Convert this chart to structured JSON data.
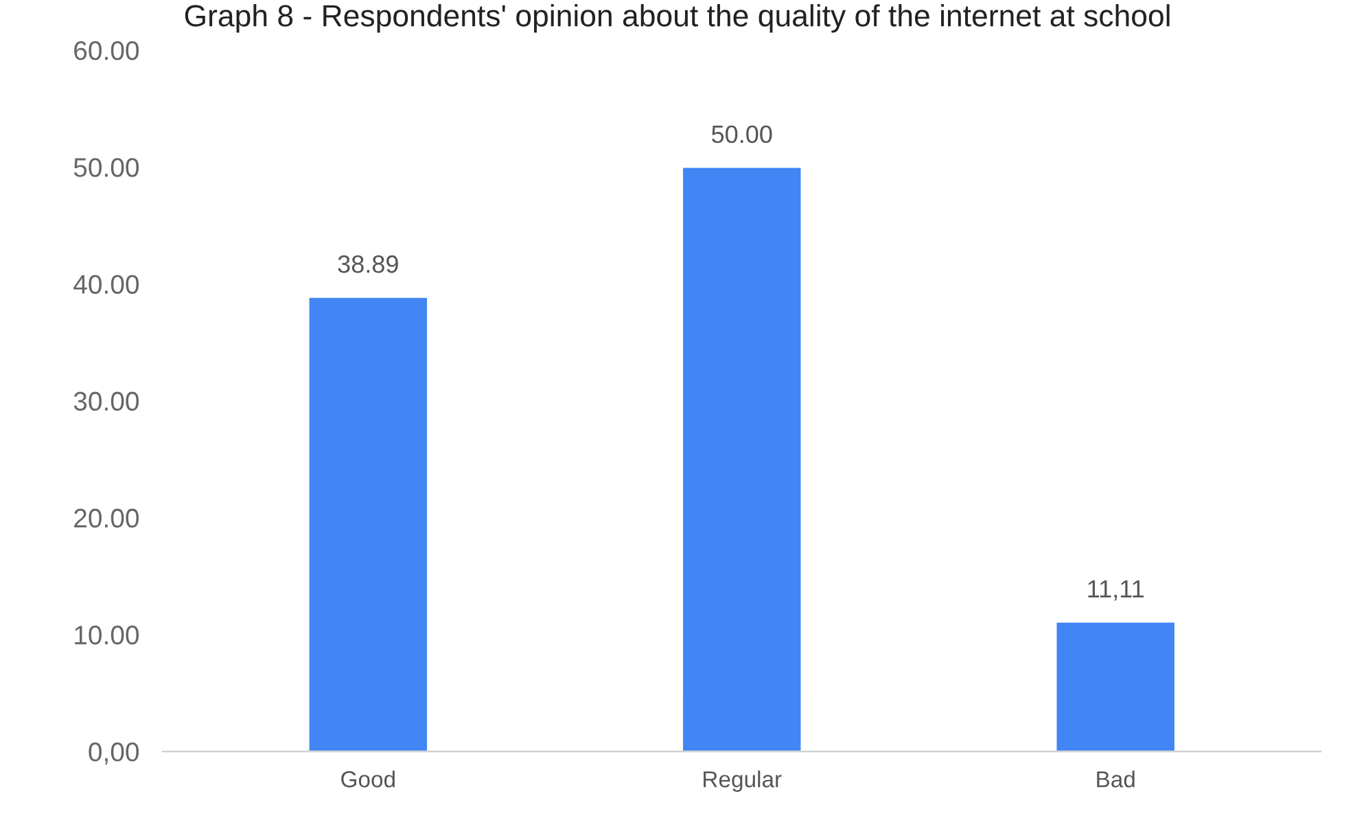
{
  "chart_data": {
    "type": "bar",
    "title": "Graph 8 - Respondents' opinion about the quality of the internet at school",
    "categories": [
      "Good",
      "Regular",
      "Bad"
    ],
    "values": [
      38.89,
      50.0,
      11.11
    ],
    "value_labels": [
      "38.89",
      "50.00",
      "11,11"
    ],
    "color": "#4285f4",
    "ylim": [
      0,
      60
    ],
    "yticks": [
      {
        "value": 0,
        "label": "0,00"
      },
      {
        "value": 10,
        "label": "10.00"
      },
      {
        "value": 20,
        "label": "20.00"
      },
      {
        "value": 30,
        "label": "30.00"
      },
      {
        "value": 40,
        "label": "40.00"
      },
      {
        "value": 50,
        "label": "50.00"
      },
      {
        "value": 60,
        "label": "60.00"
      }
    ],
    "grid": false
  }
}
